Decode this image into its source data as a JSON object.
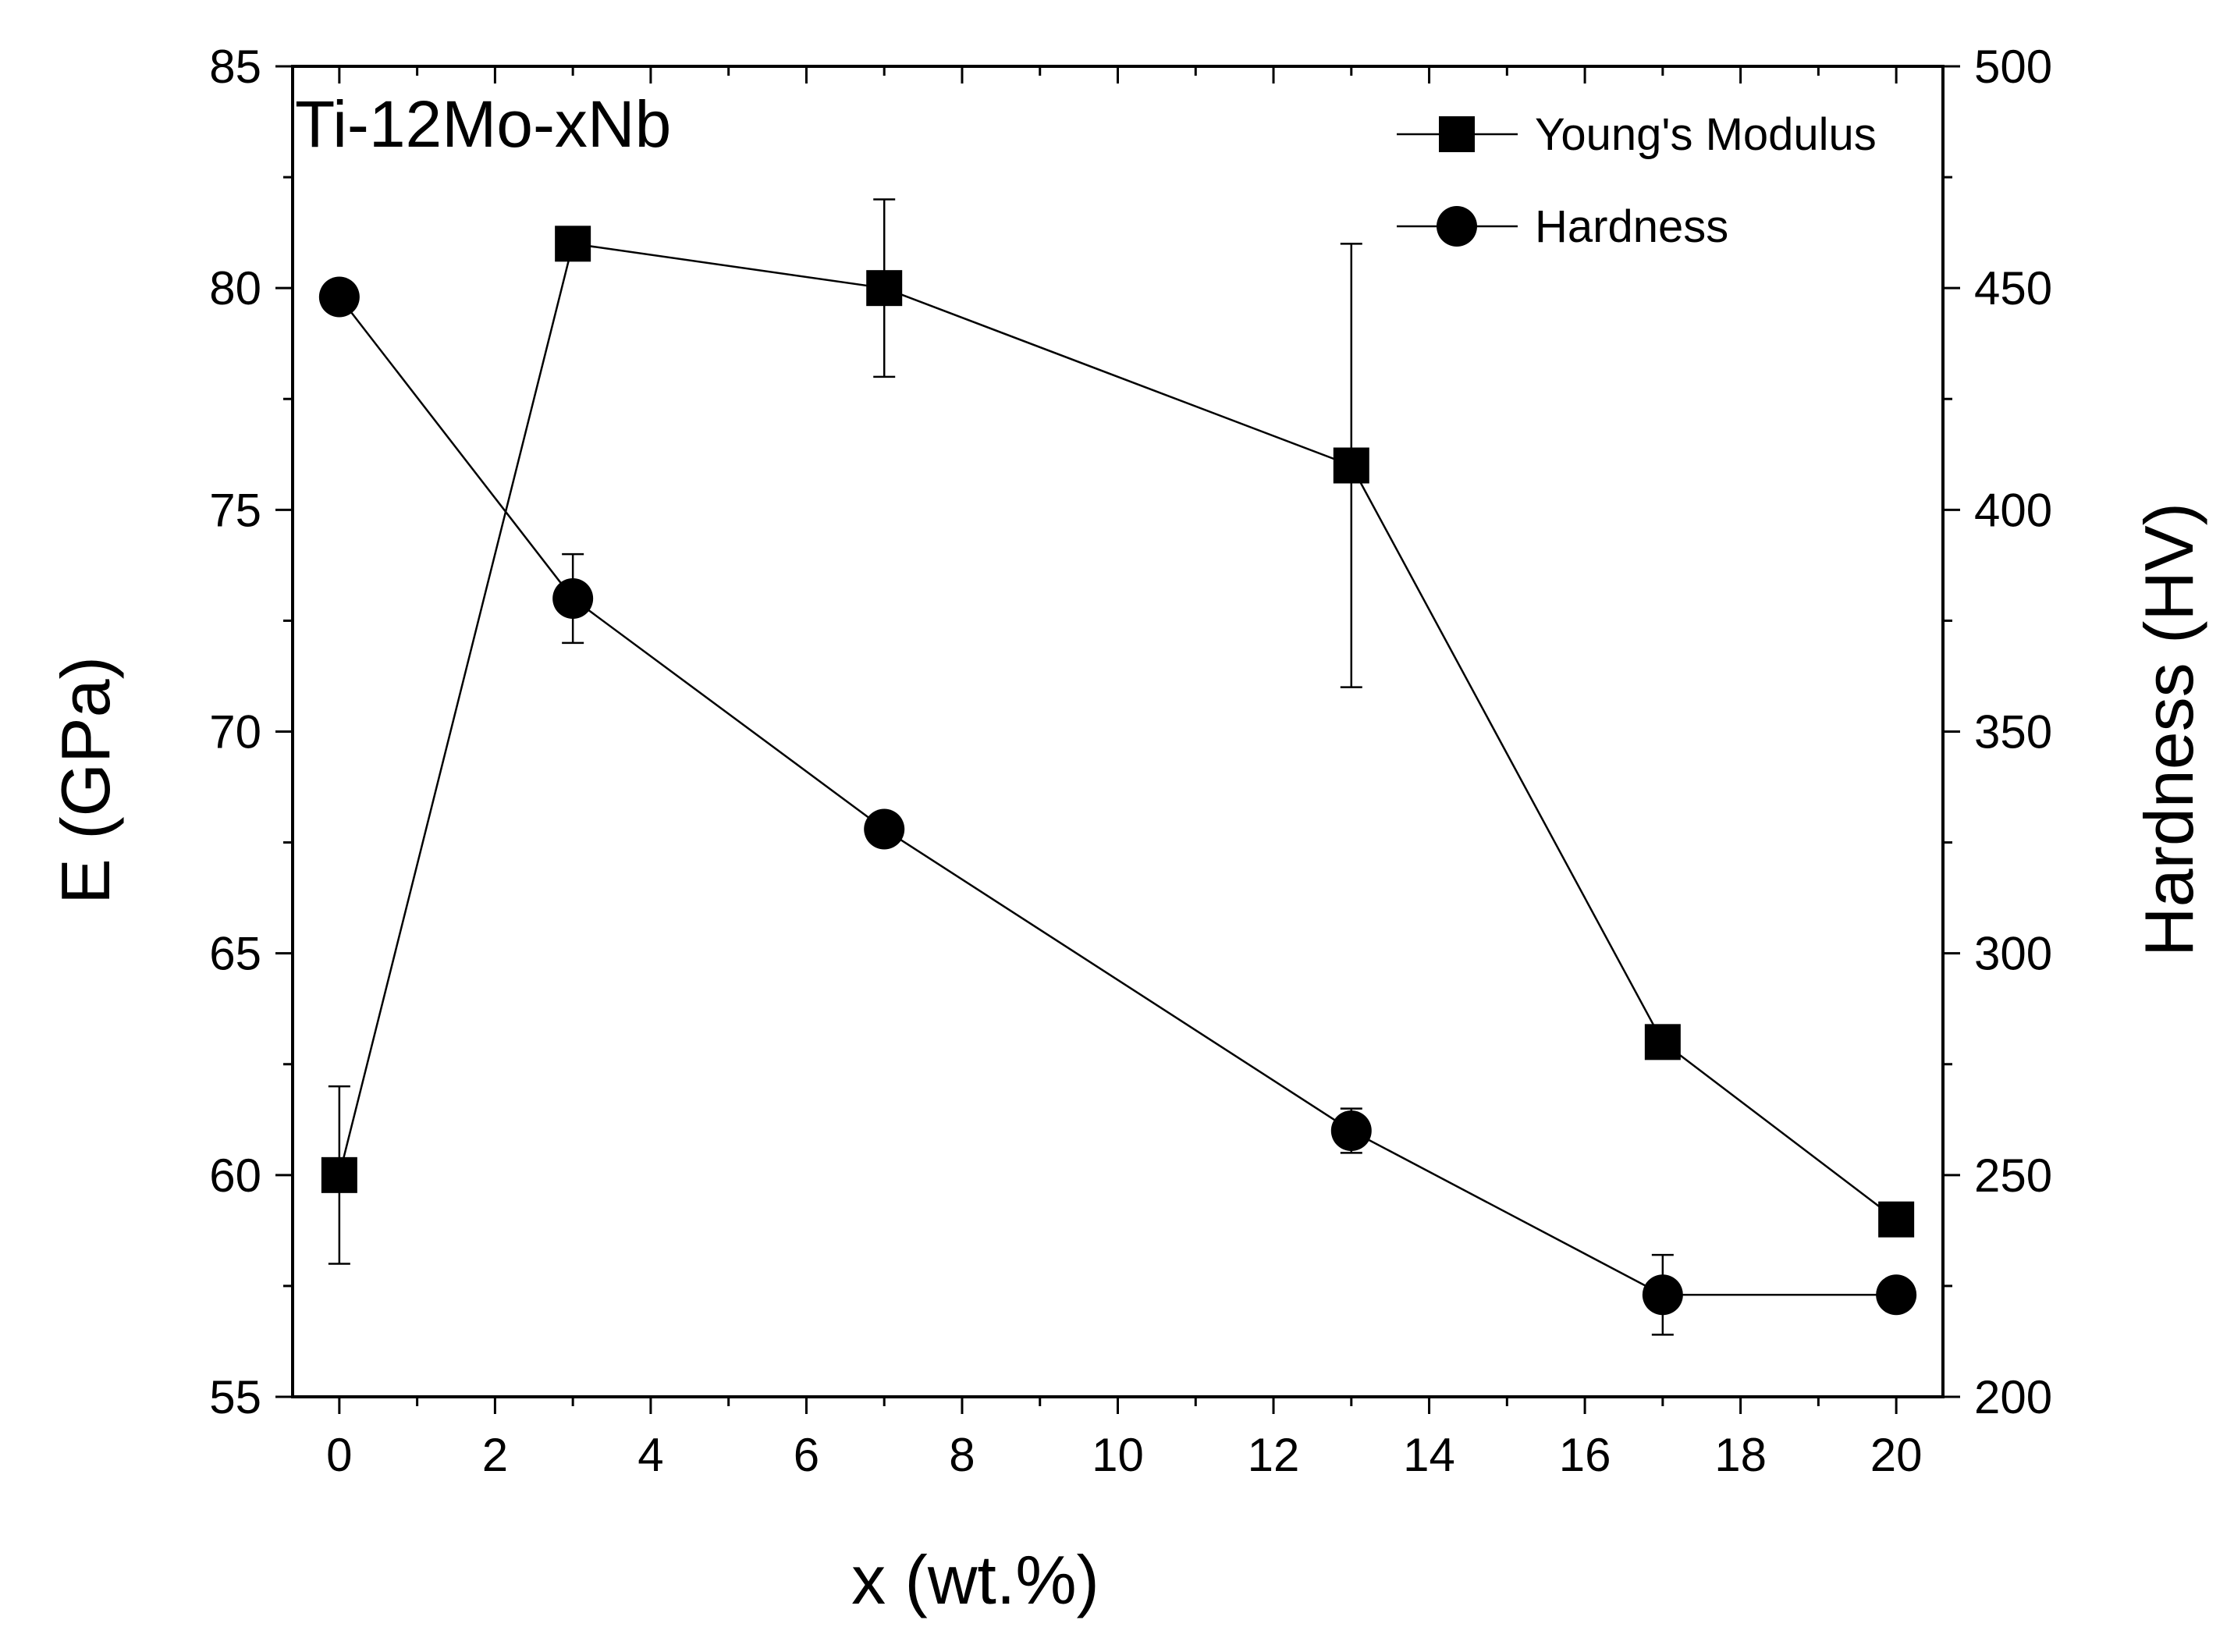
{
  "chart_data": {
    "type": "line",
    "title": "",
    "annotation": "Ti-12Mo-xNb",
    "xlabel": "x (wt.%)",
    "ylabel": "E (GPa)",
    "y2label": "Hardness (HV)",
    "xlim": [
      -0.6,
      20.6
    ],
    "ylim": [
      55,
      85
    ],
    "y2lim": [
      200,
      500
    ],
    "xticks": [
      0,
      2,
      4,
      6,
      8,
      10,
      12,
      14,
      16,
      18,
      20
    ],
    "yticks": [
      55,
      60,
      65,
      70,
      75,
      80,
      85
    ],
    "y2ticks": [
      200,
      250,
      300,
      350,
      400,
      450,
      500
    ],
    "grid": false,
    "legend_position": "top-right",
    "series": [
      {
        "name": "Young's Modulus",
        "axis": "left",
        "marker": "square",
        "x": [
          0,
          3,
          7,
          13,
          17,
          20
        ],
        "y": [
          60,
          81,
          80,
          76,
          63,
          59
        ],
        "yerr": [
          2,
          0,
          2,
          5,
          0,
          0
        ]
      },
      {
        "name": "Hardness",
        "axis": "right",
        "marker": "circle",
        "x": [
          0,
          3,
          7,
          13,
          17,
          20
        ],
        "y": [
          448,
          380,
          328,
          260,
          223,
          223
        ],
        "yerr": [
          0,
          10,
          0,
          5,
          9,
          0
        ]
      }
    ]
  }
}
